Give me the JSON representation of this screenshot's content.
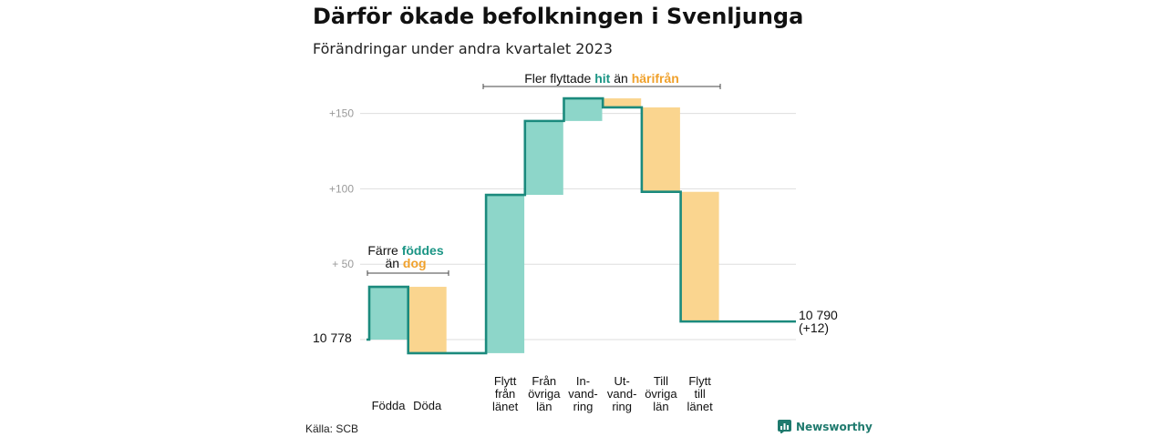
{
  "title": "Därför ökade befolkningen i Svenljunga",
  "subtitle": "Förändringar under andra kvartalet 2023",
  "source": "Källa: SCB",
  "brand": "Newsworthy",
  "colors": {
    "increase": "#8dd6c9",
    "decrease": "#fad58f",
    "line": "#1b8a7d",
    "teal_text": "#1b9585",
    "orange_text": "#f0a12c",
    "grid": "#dedede"
  },
  "chart_data": {
    "type": "waterfall",
    "start_value_label": "10  778",
    "end_value_label": "10 790",
    "end_change_label": "(+12)",
    "y_ticks": [
      "+150",
      "+100",
      "+  50"
    ],
    "y_tick_values": [
      150,
      100,
      50
    ],
    "ylim": [
      -10,
      160
    ],
    "categories": [
      {
        "label": [
          "Födda"
        ],
        "change": 35
      },
      {
        "label": [
          "Döda"
        ],
        "change": -44
      },
      {
        "label": [
          ""
        ],
        "change": 0,
        "spacer": true
      },
      {
        "label": [
          "Flytt",
          "från",
          "länet"
        ],
        "change": 105
      },
      {
        "label": [
          "Från",
          "övriga",
          "län"
        ],
        "change": 49
      },
      {
        "label": [
          "In-",
          "vand-",
          "ring"
        ],
        "change": 15
      },
      {
        "label": [
          "Ut-",
          "vand-",
          "ring"
        ],
        "change": -6
      },
      {
        "label": [
          "Till",
          "övriga",
          "län"
        ],
        "change": -56
      },
      {
        "label": [
          "Flytt",
          "till",
          "länet"
        ],
        "change": -86
      }
    ],
    "annotations": [
      {
        "lines": [
          [
            {
              "text": "Färre ",
              "style": "plain"
            },
            {
              "text": "föddes",
              "style": "teal"
            }
          ],
          [
            {
              "text": "än ",
              "style": "plain"
            },
            {
              "text": "dog",
              "style": "orange"
            }
          ]
        ]
      },
      {
        "lines": [
          [
            {
              "text": "Fler flyttade ",
              "style": "plain"
            },
            {
              "text": "hit",
              "style": "teal"
            },
            {
              "text": "  än ",
              "style": "plain"
            },
            {
              "text": "härifrån",
              "style": "orange"
            }
          ]
        ]
      }
    ]
  }
}
